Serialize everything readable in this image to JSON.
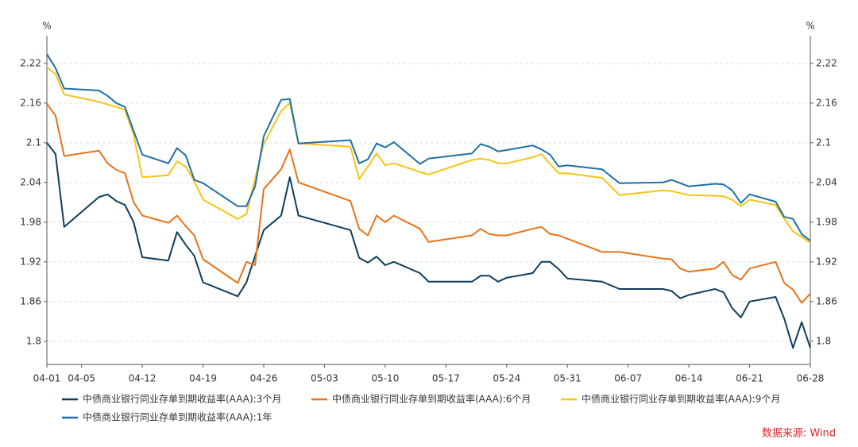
{
  "chart_data": {
    "type": "line",
    "y_label": "%",
    "y2_label": "%",
    "source": "数据来源: Wind",
    "x": [
      0,
      1,
      2,
      6,
      7,
      8,
      9,
      10,
      11,
      14,
      15,
      16,
      17,
      18,
      22,
      23,
      24,
      25,
      27,
      28,
      29,
      35,
      36,
      37,
      38,
      39,
      40,
      43,
      44,
      49,
      50,
      51,
      52,
      53,
      56,
      57,
      58,
      59,
      60,
      64,
      66,
      71,
      72,
      73,
      74,
      77,
      78,
      79,
      80,
      81,
      84,
      85,
      86,
      87,
      88
    ],
    "xlim": [
      0,
      88
    ],
    "xticks": [
      {
        "value": 0,
        "label": "04-01"
      },
      {
        "value": 4,
        "label": "04-05"
      },
      {
        "value": 11,
        "label": "04-12"
      },
      {
        "value": 18,
        "label": "04-19"
      },
      {
        "value": 25,
        "label": "04-26"
      },
      {
        "value": 32,
        "label": "05-03"
      },
      {
        "value": 39,
        "label": "05-10"
      },
      {
        "value": 46,
        "label": "05-17"
      },
      {
        "value": 53,
        "label": "05-24"
      },
      {
        "value": 60,
        "label": "05-31"
      },
      {
        "value": 67,
        "label": "06-07"
      },
      {
        "value": 74,
        "label": "06-14"
      },
      {
        "value": 81,
        "label": "06-21"
      },
      {
        "value": 88,
        "label": "06-28"
      }
    ],
    "ylim": [
      1.765,
      2.245
    ],
    "yticks": [
      1.8,
      1.86,
      1.92,
      1.98,
      2.04,
      2.1,
      2.16,
      2.22
    ],
    "y2lim": [
      1.765,
      2.245
    ],
    "y2ticks": [
      1.8,
      1.86,
      1.92,
      1.98,
      2.04,
      2.1,
      2.16,
      2.22
    ],
    "grid": true,
    "legend": "bottom",
    "series": [
      {
        "name": "中债商业银行同业存单到期收益率(AAA):3个月",
        "color": "#0f3d5c",
        "values": [
          2.1,
          2.083,
          1.973,
          2.018,
          2.022,
          2.012,
          2.006,
          1.98,
          1.927,
          1.922,
          1.965,
          1.946,
          1.929,
          1.889,
          1.868,
          1.889,
          1.929,
          1.968,
          1.99,
          2.048,
          1.99,
          1.968,
          1.926,
          1.919,
          1.928,
          1.915,
          1.92,
          1.903,
          1.89,
          1.89,
          1.899,
          1.899,
          1.89,
          1.896,
          1.903,
          1.92,
          1.92,
          1.909,
          1.895,
          1.89,
          1.879,
          1.879,
          1.876,
          1.865,
          1.87,
          1.879,
          1.874,
          1.85,
          1.836,
          1.86,
          1.867,
          1.834,
          1.79,
          1.829,
          1.79
        ]
      },
      {
        "name": "中债商业银行同业存单到期收益率(AAA):6个月",
        "color": "#e8731a",
        "values": [
          2.159,
          2.141,
          2.08,
          2.088,
          2.069,
          2.059,
          2.054,
          2.01,
          1.99,
          1.979,
          1.99,
          1.974,
          1.96,
          1.924,
          1.888,
          1.92,
          1.915,
          2.03,
          2.06,
          2.09,
          2.04,
          2.012,
          1.97,
          1.96,
          1.99,
          1.98,
          1.99,
          1.97,
          1.95,
          1.96,
          1.97,
          1.962,
          1.96,
          1.96,
          1.97,
          1.973,
          1.962,
          1.96,
          1.955,
          1.935,
          1.935,
          1.925,
          1.924,
          1.91,
          1.905,
          1.91,
          1.92,
          1.9,
          1.893,
          1.91,
          1.92,
          1.888,
          1.878,
          1.858,
          1.872
        ]
      },
      {
        "name": "中债商业银行同业存单到期收益率(AAA):9个月",
        "color": "#f6c416",
        "values": [
          2.214,
          2.204,
          2.173,
          2.162,
          2.158,
          2.154,
          2.15,
          2.112,
          2.048,
          2.051,
          2.072,
          2.064,
          2.042,
          2.014,
          1.985,
          1.992,
          2.046,
          2.098,
          2.148,
          2.16,
          2.099,
          2.094,
          2.045,
          2.064,
          2.084,
          2.066,
          2.069,
          2.056,
          2.052,
          2.074,
          2.076,
          2.074,
          2.069,
          2.069,
          2.078,
          2.083,
          2.068,
          2.054,
          2.054,
          2.047,
          2.021,
          2.028,
          2.027,
          2.024,
          2.021,
          2.02,
          2.019,
          2.014,
          2.004,
          2.014,
          2.006,
          1.985,
          1.966,
          1.958,
          1.949
        ]
      },
      {
        "name": "中债商业银行同业存单到期收益率(AAA):1年",
        "color": "#1f6fa8",
        "values": [
          2.234,
          2.213,
          2.182,
          2.179,
          2.171,
          2.16,
          2.154,
          2.118,
          2.082,
          2.069,
          2.092,
          2.081,
          2.044,
          2.039,
          2.004,
          2.004,
          2.034,
          2.11,
          2.165,
          2.166,
          2.099,
          2.104,
          2.069,
          2.075,
          2.099,
          2.093,
          2.101,
          2.068,
          2.076,
          2.084,
          2.098,
          2.094,
          2.087,
          2.089,
          2.096,
          2.09,
          2.082,
          2.064,
          2.066,
          2.06,
          2.039,
          2.04,
          2.044,
          2.039,
          2.034,
          2.038,
          2.037,
          2.028,
          2.009,
          2.022,
          2.011,
          1.988,
          1.985,
          1.962,
          1.952
        ]
      }
    ]
  }
}
